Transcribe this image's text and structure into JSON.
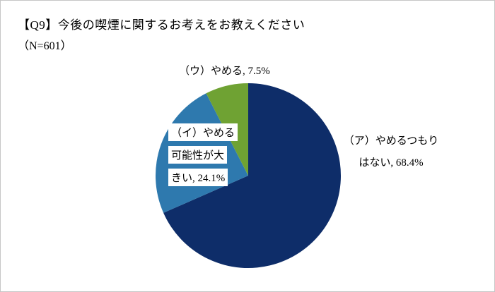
{
  "header": {
    "title": "【Q9】今後の喫煙に関するお考えをお教えください",
    "subtitle": "（N=601）"
  },
  "chart_data": {
    "type": "pie",
    "title": "【Q9】今後の喫煙に関するお考えをお教えください（N=601）",
    "categories": [
      "（ア）やめるつもりはない",
      "（イ）やめる可能性が大きい",
      "（ウ）やめる"
    ],
    "values": [
      68.4,
      24.1,
      7.5
    ],
    "unit": "%",
    "colors": [
      "#0e2d69",
      "#2e79ae",
      "#6fa233"
    ],
    "start_angle_deg": -90,
    "direction": "clockwise",
    "legend_position": "none",
    "callouts": {
      "slice_a": [
        "（ア）やめるつもり",
        "はない, 68.4%"
      ],
      "slice_b": [
        "（イ）やめる",
        "可能性が大",
        "きい, 24.1%"
      ],
      "slice_c": [
        "（ウ）やめる, 7.5%"
      ]
    }
  }
}
